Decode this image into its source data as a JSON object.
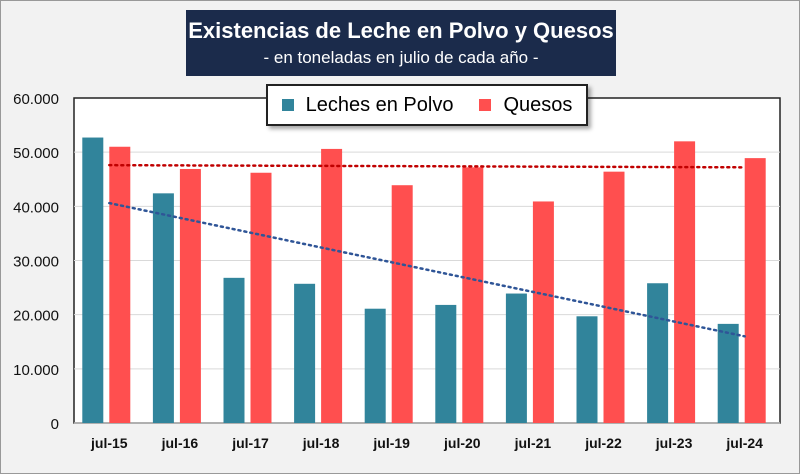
{
  "chart_data": {
    "type": "bar",
    "title": "Existencias de Leche en Polvo y Quesos",
    "subtitle": "- en toneladas en julio de cada año -",
    "categories": [
      "jul-15",
      "jul-16",
      "jul-17",
      "jul-18",
      "jul-19",
      "jul-20",
      "jul-21",
      "jul-22",
      "jul-23",
      "jul-24"
    ],
    "series": [
      {
        "name": "Leches en Polvo",
        "color": "#31849b",
        "values": [
          52700,
          42400,
          26800,
          25700,
          21100,
          21800,
          23900,
          19700,
          25800,
          18300
        ],
        "trend": [
          40600,
          16000
        ]
      },
      {
        "name": "Quesos",
        "color": "#ff4f4f",
        "values": [
          51000,
          46900,
          46200,
          50600,
          43900,
          47200,
          40900,
          46400,
          52000,
          48900
        ],
        "trend": [
          47600,
          47200
        ]
      }
    ],
    "yticks": [
      "0",
      "10.000",
      "20.000",
      "30.000",
      "40.000",
      "50.000",
      "60.000"
    ],
    "ylim": [
      0,
      60000
    ],
    "grid": true,
    "legend_position": "top"
  }
}
